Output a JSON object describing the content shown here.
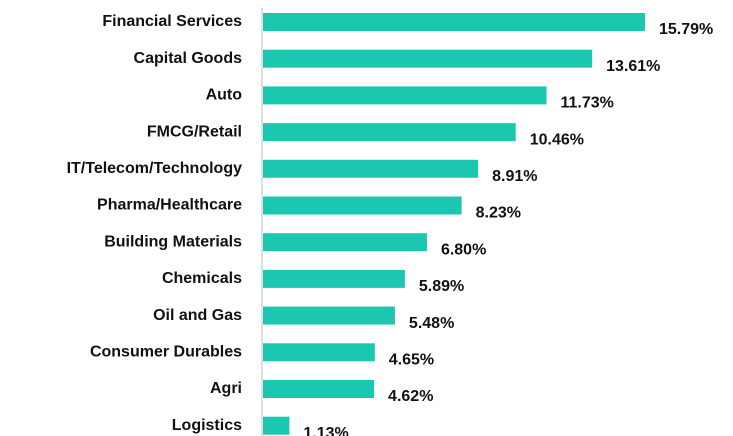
{
  "chart_data": {
    "type": "bar",
    "orientation": "horizontal",
    "categories": [
      "Financial Services",
      "Capital Goods",
      "Auto",
      "FMCG/Retail",
      "IT/Telecom/Technology",
      "Pharma/Healthcare",
      "Building Materials",
      "Chemicals",
      "Oil and Gas",
      "Consumer Durables",
      "Agri",
      "Logistics"
    ],
    "values": [
      15.79,
      13.61,
      11.73,
      10.46,
      8.91,
      8.23,
      6.8,
      5.89,
      5.48,
      4.65,
      4.62,
      1.13
    ],
    "value_labels": [
      "15.79%",
      "13.61%",
      "11.73%",
      "10.46%",
      "8.91%",
      "8.23%",
      "6.80%",
      "5.89%",
      "5.48%",
      "4.65%",
      "4.62%",
      "1.13%"
    ],
    "color": "#1cc7b0"
  }
}
